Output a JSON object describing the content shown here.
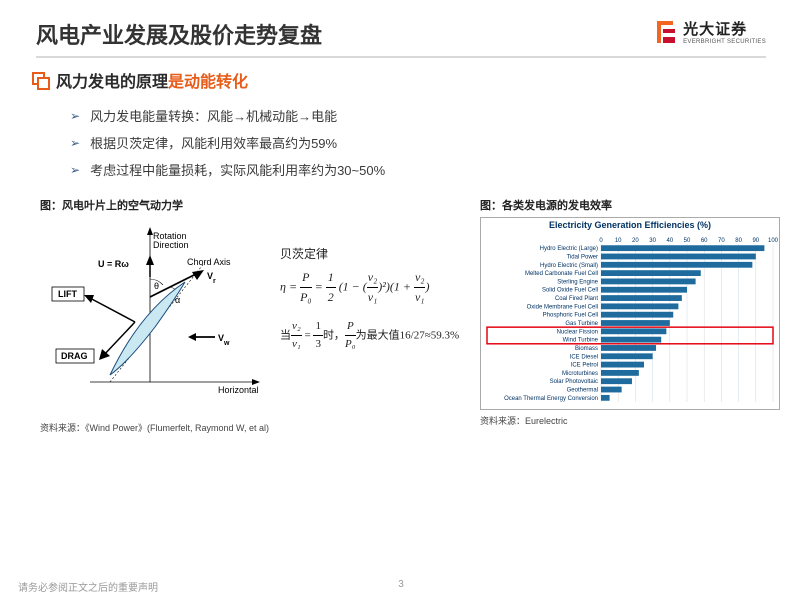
{
  "header": {
    "title": "风电产业发展及股价走势复盘",
    "logo_cn": "光大证券",
    "logo_en": "EVERBRIGHT SECURITIES",
    "logo_colors": {
      "orange": "#f26522",
      "red": "#c8102e"
    }
  },
  "subtitle": {
    "black": "风力发电的原理",
    "orange": "是动能转化"
  },
  "bullets": [
    "风力发电能量转换：风能→机械动能→电能",
    "根据贝茨定律，风能利用效率最高约为59%",
    "考虑过程中能量损耗，实际风能利用率约为30~50%"
  ],
  "fig_left": {
    "title": "图：风电叶片上的空气动力学",
    "source": "资料来源：《Wind Power》(Flumerfelt, Raymond W, et al)",
    "labels": {
      "rotation": "Rotation\nDirection",
      "u_eq": "U = Rω",
      "chord": "Chord Axis",
      "vr": "Vr",
      "theta": "θ",
      "alpha": "α",
      "lift": "LIFT",
      "drag": "DRAG",
      "vw": "Vw",
      "horizontal": "Horizontal"
    },
    "betz_label": "贝茨定律",
    "formula_main": "η = P/P₀ = ½(1 − (v₂/v₁)²)(1 + v₂/v₁)",
    "formula_cond": "当v₂/v₁ = 1/3时，P/P₀为最大值16/27≈59.3%",
    "colors": {
      "airfoil_fill": "#c9e8f2",
      "airfoil_stroke": "#1a4b7a"
    }
  },
  "fig_right": {
    "title": "图：各类发电源的发电效率",
    "chart_title": "Electricity Generation Efficiencies (%)",
    "source": "资料来源：Eurelectric",
    "axis": {
      "min": 0,
      "max": 100,
      "step": 10
    },
    "highlight_index": 12,
    "bar_color": "#1f6b9e",
    "grid_color": "#cfd8e0",
    "highlight_color": "#e30613",
    "categories": [
      {
        "label": "Hydro Electric (Large)",
        "value": 95
      },
      {
        "label": "Tidal Power",
        "value": 90
      },
      {
        "label": "Hydro Electric (Small)",
        "value": 88
      },
      {
        "label": "Melted Carbonate Fuel Cell",
        "value": 58
      },
      {
        "label": "Sterling Engine",
        "value": 55
      },
      {
        "label": "Solid Oxide Fuel Cell",
        "value": 50
      },
      {
        "label": "Coal Fired Plant",
        "value": 47
      },
      {
        "label": "Oxide Membrane Fuel Cell",
        "value": 45
      },
      {
        "label": "Phosphoric Fuel Cell",
        "value": 42
      },
      {
        "label": "Gas Turbine",
        "value": 40
      },
      {
        "label": "Nuclear Fission",
        "value": 38
      },
      {
        "label": "Wind Turbine",
        "value": 35
      },
      {
        "label": "Biomass",
        "value": 32
      },
      {
        "label": "ICE Diesel",
        "value": 30
      },
      {
        "label": "ICE Petrol",
        "value": 25
      },
      {
        "label": "Microturbines",
        "value": 22
      },
      {
        "label": "Solar Photovoltaic",
        "value": 18
      },
      {
        "label": "Geothermal",
        "value": 12
      },
      {
        "label": "Ocean Thermal Energy Conversion",
        "value": 5
      }
    ]
  },
  "footer": {
    "disclaimer": "请务必参阅正文之后的重要声明",
    "page": "3"
  }
}
